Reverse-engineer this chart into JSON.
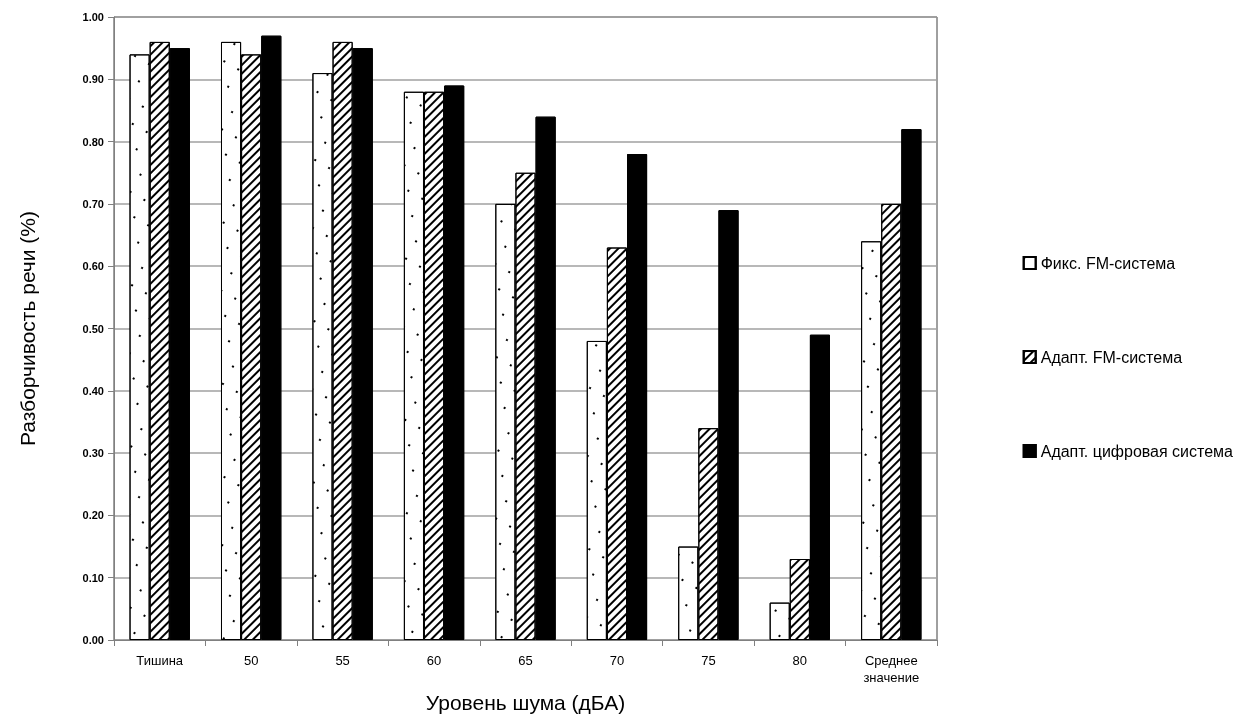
{
  "chart_data": {
    "type": "bar",
    "xlabel": "Уровень шума (дБА)",
    "ylabel": "Разборчивость речи (%)",
    "categories": [
      "Тишина",
      "50",
      "55",
      "60",
      "65",
      "70",
      "75",
      "80",
      "Среднее значение"
    ],
    "series": [
      {
        "name": "Фикс. FM-система",
        "color": "#ffffff",
        "values": [
          0.94,
          0.96,
          0.91,
          0.88,
          0.7,
          0.48,
          0.15,
          0.06,
          0.64
        ]
      },
      {
        "name": "Адапт. FM-система",
        "color": "#ffffff",
        "values": [
          0.96,
          0.94,
          0.96,
          0.88,
          0.75,
          0.63,
          0.34,
          0.13,
          0.7
        ]
      },
      {
        "name": "Адапт. цифровая система",
        "color": "#000000",
        "values": [
          0.95,
          0.97,
          0.95,
          0.89,
          0.84,
          0.78,
          0.69,
          0.49,
          0.82
        ]
      }
    ],
    "ylim": [
      0,
      1
    ],
    "yticks": [
      {
        "value": 0,
        "label": "0.00"
      },
      {
        "value": 0.1,
        "label": "0.10"
      },
      {
        "value": 0.2,
        "label": "0.20"
      },
      {
        "value": 0.3,
        "label": "0.30"
      },
      {
        "value": 0.4,
        "label": "0.40"
      },
      {
        "value": 0.5,
        "label": "0.50"
      },
      {
        "value": 0.6,
        "label": "0.60"
      },
      {
        "value": 0.7,
        "label": "0.70"
      },
      {
        "value": 0.8,
        "label": "0.80"
      },
      {
        "value": 0.9,
        "label": "0.90"
      },
      {
        "value": 1,
        "label": "1.00"
      }
    ],
    "grid": "y",
    "legend": "right"
  }
}
